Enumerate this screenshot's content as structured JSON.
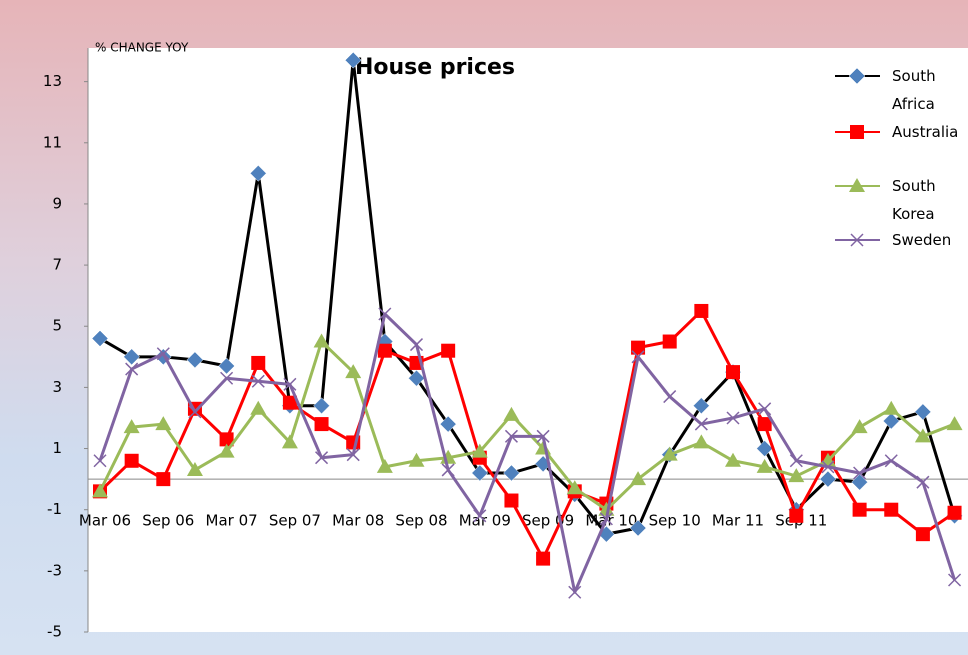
{
  "chart_data": {
    "type": "line",
    "title": "House prices",
    "y_label": "% CHANGE YOY",
    "categories": [
      "Mar 06",
      null,
      "Sep 06",
      null,
      "Mar 07",
      null,
      "Sep 07",
      null,
      "Mar 08",
      null,
      "Sep 08",
      null,
      "Mar 09",
      null,
      "Sep 09",
      null,
      "Mar 10",
      null,
      "Sep 10",
      null,
      "Mar 11",
      null,
      "Sep 11",
      null,
      null,
      null,
      null,
      null
    ],
    "ylim": [
      -5,
      14.1
    ],
    "yticks": [
      -5,
      -3,
      -1,
      1,
      3,
      5,
      7,
      9,
      11,
      13
    ],
    "legend": "top-right",
    "series": [
      {
        "name": "South Africa",
        "color": "#000000",
        "marker_color": "#4f81bd",
        "marker": "diamond",
        "values": [
          4.6,
          4.0,
          4.0,
          3.9,
          3.7,
          10.0,
          2.4,
          2.4,
          13.7,
          4.5,
          3.3,
          1.8,
          0.2,
          0.2,
          0.5,
          -0.5,
          -1.8,
          -1.6,
          0.8,
          2.4,
          3.5,
          1.0,
          -1.0,
          0.0,
          -0.1,
          1.9,
          2.2,
          -1.2
        ]
      },
      {
        "name": "Australia",
        "color": "#ff0000",
        "marker_color": "#ff0000",
        "marker": "square",
        "values": [
          -0.4,
          0.6,
          0.0,
          2.3,
          1.3,
          3.8,
          2.5,
          1.8,
          1.2,
          4.2,
          3.8,
          4.2,
          0.7,
          -0.7,
          -2.6,
          -0.4,
          -0.8,
          4.3,
          4.5,
          5.5,
          3.5,
          1.8,
          -1.2,
          0.7,
          -1.0,
          -1.0,
          -1.8,
          -1.1
        ]
      },
      {
        "name": "South Korea",
        "color": "#9bbb59",
        "marker_color": "#9bbb59",
        "marker": "triangle",
        "values": [
          -0.4,
          1.7,
          1.8,
          0.3,
          0.9,
          2.3,
          1.2,
          4.5,
          3.5,
          0.4,
          0.6,
          0.7,
          0.9,
          2.1,
          1.0,
          -0.3,
          -1.0,
          0.0,
          0.8,
          1.2,
          0.6,
          0.4,
          0.1,
          0.6,
          1.7,
          2.3,
          1.4,
          1.8
        ]
      },
      {
        "name": "Sweden",
        "color": "#8064a2",
        "marker_color": "#8064a2",
        "marker": "x",
        "values": [
          0.6,
          3.6,
          4.1,
          2.2,
          3.3,
          3.2,
          3.1,
          0.7,
          0.8,
          5.4,
          4.4,
          0.3,
          -1.2,
          1.4,
          1.4,
          -3.7,
          -1.3,
          4.0,
          2.7,
          1.8,
          2.0,
          2.3,
          0.6,
          0.4,
          0.2,
          0.6,
          -0.1,
          -3.3
        ]
      }
    ]
  }
}
